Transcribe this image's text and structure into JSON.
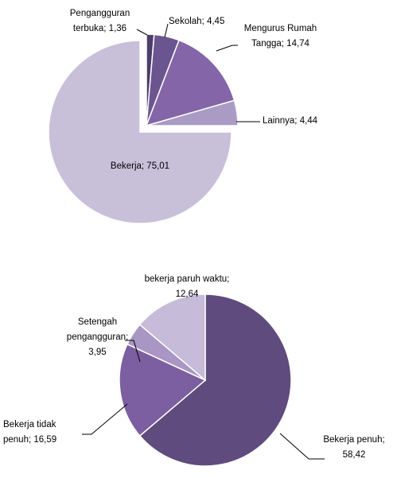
{
  "chart_data": [
    {
      "type": "pie",
      "categories": [
        "Pengangguran terbuka",
        "Sekolah",
        "Mengurus Rumah Tangga",
        "Lainnya",
        "Bekerja"
      ],
      "values": [
        1.36,
        4.45,
        14.74,
        4.44,
        75.01
      ],
      "value_labels": [
        "1,36",
        "4,45",
        "14,74",
        "4,44",
        "75,01"
      ],
      "label_separator": "; ",
      "colors": [
        "#4e3d6a",
        "#6b5590",
        "#8465a8",
        "#a99bc4",
        "#c8c0d9"
      ],
      "exploded": [
        true,
        true,
        true,
        true,
        false
      ]
    },
    {
      "type": "pie",
      "categories": [
        "Bekerja penuh",
        "Bekerja tidak penuh",
        "Setengah pengangguran",
        "bekerja paruh waktu"
      ],
      "values": [
        58.42,
        16.59,
        3.95,
        12.64
      ],
      "value_labels": [
        "58,42",
        "16,59",
        "3,95",
        "12,64"
      ],
      "label_separator": "; ",
      "colors": [
        "#5f4b7e",
        "#7b5fa0",
        "#a996c5",
        "#c6bbd9"
      ],
      "exploded": [
        false,
        false,
        false,
        false
      ]
    }
  ]
}
